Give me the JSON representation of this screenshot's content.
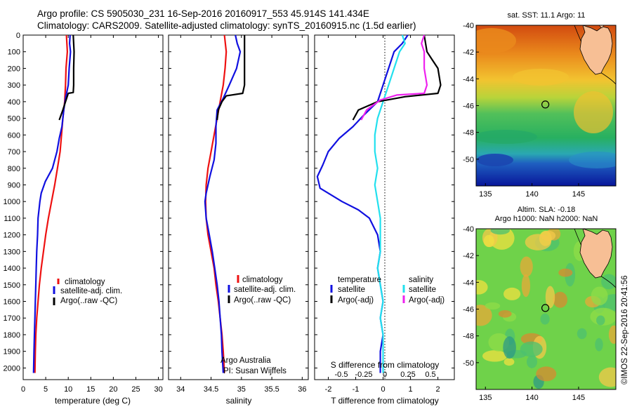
{
  "header": {
    "line1": "Argo profile: CS 5905030_231 16-Sep-2016 20160917_553 45.914S 141.434E",
    "line2": "Climatology: CARS2009. Satellite-adjusted climatology: synTS_20160915.nc (1.5d earlier)"
  },
  "colors": {
    "climatology": "#ee1111",
    "satellite": "#1010e0",
    "argo": "#000000",
    "salinity_satellite": "#22e0ee",
    "salinity_argo": "#ee22ee",
    "land": "#f7bf95"
  },
  "chart_data": [
    {
      "id": "temperature",
      "type": "line",
      "xlabel": "temperature (deg C)",
      "ylabel": "",
      "xlim": [
        0,
        31
      ],
      "ylim": [
        2070,
        0
      ],
      "xticks": [
        0,
        5,
        10,
        15,
        20,
        25,
        30
      ],
      "yticks": [
        0,
        100,
        200,
        300,
        400,
        500,
        600,
        700,
        800,
        900,
        1000,
        1100,
        1200,
        1300,
        1400,
        1500,
        1600,
        1700,
        1800,
        1900,
        2000
      ],
      "legend": [
        "climatology",
        "satellite-adj. clim.",
        "Argo(..raw -QC)"
      ],
      "series": [
        {
          "name": "climatology",
          "color": "#ee1111",
          "points": [
            [
              9.6,
              0
            ],
            [
              9.8,
              100
            ],
            [
              9.5,
              200
            ],
            [
              9.4,
              300
            ],
            [
              9.2,
              400
            ],
            [
              8.8,
              500
            ],
            [
              8.5,
              600
            ],
            [
              8.2,
              700
            ],
            [
              7.6,
              800
            ],
            [
              7.0,
              900
            ],
            [
              6.3,
              1000
            ],
            [
              5.6,
              1100
            ],
            [
              5.0,
              1200
            ],
            [
              4.5,
              1300
            ],
            [
              4.0,
              1400
            ],
            [
              3.6,
              1500
            ],
            [
              3.3,
              1600
            ],
            [
              3.0,
              1700
            ],
            [
              2.8,
              1800
            ],
            [
              2.7,
              1900
            ],
            [
              2.6,
              2030
            ]
          ]
        },
        {
          "name": "satellite-adj. clim.",
          "color": "#1010e0",
          "points": [
            [
              10.4,
              0
            ],
            [
              10.3,
              50
            ],
            [
              10.5,
              100
            ],
            [
              10.2,
              200
            ],
            [
              10.0,
              300
            ],
            [
              9.4,
              380
            ],
            [
              9.0,
              450
            ],
            [
              8.6,
              550
            ],
            [
              8.0,
              620
            ],
            [
              7.5,
              700
            ],
            [
              6.5,
              800
            ],
            [
              4.9,
              880
            ],
            [
              4.0,
              950
            ],
            [
              3.7,
              1000
            ],
            [
              3.5,
              1050
            ],
            [
              3.3,
              1100
            ],
            [
              3.2,
              1200
            ],
            [
              3.0,
              1300
            ],
            [
              2.9,
              1400
            ],
            [
              2.8,
              1500
            ],
            [
              2.7,
              1600
            ],
            [
              2.6,
              1700
            ],
            [
              2.5,
              1800
            ],
            [
              2.4,
              1900
            ],
            [
              2.3,
              2030
            ]
          ]
        },
        {
          "name": "Argo(..raw -QC)",
          "color": "#000000",
          "points": [
            [
              11.1,
              0
            ],
            [
              11.3,
              100
            ],
            [
              11.2,
              200
            ],
            [
              11.2,
              300
            ],
            [
              11.1,
              345
            ],
            [
              10.0,
              350
            ],
            [
              9.4,
              400
            ],
            [
              8.8,
              450
            ],
            [
              8.0,
              510
            ]
          ]
        }
      ]
    },
    {
      "id": "salinity",
      "type": "line",
      "xlabel": "salinity",
      "ylabel": "",
      "xlim": [
        33.8,
        36.1
      ],
      "ylim": [
        2070,
        0
      ],
      "xticks": [
        34,
        34.5,
        35,
        35.5,
        36
      ],
      "legend": [
        "climatology",
        "satellite-adj. clim.",
        "Argo(..raw -QC)"
      ],
      "annotation": [
        "Argo Australia",
        "PI: Susan Wijffels"
      ],
      "series": [
        {
          "name": "climatology",
          "color": "#ee1111",
          "points": [
            [
              34.72,
              0
            ],
            [
              34.75,
              100
            ],
            [
              34.73,
              200
            ],
            [
              34.7,
              300
            ],
            [
              34.65,
              400
            ],
            [
              34.6,
              500
            ],
            [
              34.55,
              600
            ],
            [
              34.5,
              700
            ],
            [
              34.45,
              800
            ],
            [
              34.42,
              900
            ],
            [
              34.41,
              1000
            ],
            [
              34.42,
              1100
            ],
            [
              34.45,
              1200
            ],
            [
              34.5,
              1300
            ],
            [
              34.55,
              1400
            ],
            [
              34.58,
              1500
            ],
            [
              34.62,
              1600
            ],
            [
              34.65,
              1700
            ],
            [
              34.68,
              1800
            ],
            [
              34.7,
              1900
            ],
            [
              34.72,
              2030
            ]
          ]
        },
        {
          "name": "satellite-adj. clim.",
          "color": "#1010e0",
          "points": [
            [
              34.9,
              0
            ],
            [
              34.93,
              50
            ],
            [
              34.98,
              100
            ],
            [
              34.92,
              200
            ],
            [
              34.8,
              300
            ],
            [
              34.7,
              380
            ],
            [
              34.6,
              450
            ],
            [
              34.58,
              550
            ],
            [
              34.58,
              650
            ],
            [
              34.55,
              750
            ],
            [
              34.48,
              850
            ],
            [
              34.42,
              950
            ],
            [
              34.4,
              1000
            ],
            [
              34.42,
              1100
            ],
            [
              34.47,
              1200
            ],
            [
              34.52,
              1300
            ],
            [
              34.56,
              1400
            ],
            [
              34.6,
              1500
            ],
            [
              34.63,
              1600
            ],
            [
              34.65,
              1700
            ],
            [
              34.67,
              1800
            ],
            [
              34.68,
              1900
            ],
            [
              34.7,
              2030
            ]
          ]
        },
        {
          "name": "Argo(..raw -QC)",
          "color": "#000000",
          "points": [
            [
              35.05,
              0
            ],
            [
              35.05,
              100
            ],
            [
              35.05,
              200
            ],
            [
              35.05,
              300
            ],
            [
              35.02,
              350
            ],
            [
              34.75,
              365
            ],
            [
              34.68,
              400
            ],
            [
              34.62,
              450
            ],
            [
              34.6,
              510
            ]
          ]
        }
      ]
    },
    {
      "id": "difference",
      "type": "line",
      "xlabel": "T difference from climatology",
      "x2label": "S difference from climatology",
      "ylabel": "",
      "xlim": [
        -2.5,
        2.6
      ],
      "ylim": [
        2070,
        0
      ],
      "xticks": [
        -2,
        -1,
        0,
        1,
        2
      ],
      "x2ticks": [
        "-0.5",
        "-0.25",
        "0",
        "0.25",
        "0.5"
      ],
      "legend_left_title": "temperature",
      "legend_right_title": "salinity",
      "legend_left": [
        "satellite",
        "Argo(-adj)"
      ],
      "legend_right": [
        "satellite",
        "Argo(-adj)"
      ],
      "series": [
        {
          "name": "T satellite",
          "color": "#1010e0",
          "points": [
            [
              0.9,
              0
            ],
            [
              0.7,
              50
            ],
            [
              0.4,
              100
            ],
            [
              0.2,
              200
            ],
            [
              0.0,
              300
            ],
            [
              -0.2,
              400
            ],
            [
              -0.7,
              480
            ],
            [
              -1.1,
              550
            ],
            [
              -1.6,
              620
            ],
            [
              -2.0,
              700
            ],
            [
              -2.2,
              780
            ],
            [
              -2.4,
              850
            ],
            [
              -2.3,
              920
            ],
            [
              -1.9,
              960
            ],
            [
              -1.5,
              1000
            ],
            [
              -0.9,
              1050
            ],
            [
              -0.5,
              1100
            ],
            [
              -0.2,
              1200
            ],
            [
              -0.1,
              1300
            ],
            [
              -0.2,
              1400
            ],
            [
              -0.1,
              1500
            ],
            [
              0.0,
              1600
            ],
            [
              -0.1,
              1700
            ],
            [
              0.0,
              1800
            ],
            [
              -0.1,
              1900
            ],
            [
              -0.1,
              2030
            ]
          ]
        },
        {
          "name": "S satellite",
          "color": "#22e0ee",
          "points": [
            [
              0.7,
              0
            ],
            [
              0.8,
              50
            ],
            [
              0.6,
              100
            ],
            [
              0.4,
              200
            ],
            [
              0.2,
              300
            ],
            [
              0.0,
              400
            ],
            [
              -0.2,
              500
            ],
            [
              -0.3,
              600
            ],
            [
              -0.3,
              700
            ],
            [
              -0.2,
              800
            ],
            [
              -0.3,
              900
            ],
            [
              -0.2,
              1000
            ],
            [
              -0.1,
              1100
            ],
            [
              -0.1,
              1200
            ],
            [
              -0.1,
              1300
            ],
            [
              -0.2,
              1400
            ],
            [
              -0.1,
              1500
            ],
            [
              0.0,
              1600
            ],
            [
              -0.1,
              1700
            ],
            [
              0.0,
              1800
            ],
            [
              0.0,
              1900
            ],
            [
              0.0,
              2030
            ]
          ]
        },
        {
          "name": "T Argo(-adj)",
          "color": "#000000",
          "points": [
            [
              1.5,
              0
            ],
            [
              1.6,
              100
            ],
            [
              1.8,
              150
            ],
            [
              2.0,
              200
            ],
            [
              2.1,
              300
            ],
            [
              2.0,
              350
            ],
            [
              0.8,
              370
            ],
            [
              -0.2,
              400
            ],
            [
              -0.9,
              450
            ],
            [
              -1.1,
              510
            ]
          ]
        },
        {
          "name": "S Argo(-adj)",
          "color": "#ee22ee",
          "points": [
            [
              1.5,
              0
            ],
            [
              1.4,
              50
            ],
            [
              1.5,
              100
            ],
            [
              1.5,
              200
            ],
            [
              1.6,
              300
            ],
            [
              1.5,
              350
            ],
            [
              0.5,
              360
            ],
            [
              -0.1,
              390
            ],
            [
              -0.6,
              450
            ],
            [
              -0.8,
              510
            ]
          ]
        }
      ]
    },
    {
      "id": "sst-map",
      "type": "heatmap",
      "title": "sat. SST: 11.1 Argo: 11",
      "xticks": [
        135,
        140,
        145
      ],
      "yticks": [
        "-40",
        "-42",
        "-44",
        "-46",
        "-48",
        "-50"
      ],
      "xlim": [
        134,
        149
      ],
      "ylim": [
        -52,
        -40
      ],
      "profile_marker": [
        141.434,
        -45.914
      ]
    },
    {
      "id": "sla-map",
      "type": "heatmap",
      "title_line1": "Altim. SLA: -0.18",
      "title_line2": "Argo h1000: NaN h2000: NaN",
      "xticks": [
        135,
        140,
        145
      ],
      "yticks": [
        "-40",
        "-42",
        "-44",
        "-46",
        "-48",
        "-50"
      ],
      "xlim": [
        134,
        149
      ],
      "ylim": [
        -52,
        -40
      ],
      "profile_marker": [
        141.434,
        -45.914
      ]
    }
  ],
  "credit": "©IMOS 22-Sep-2016 20:41:56"
}
